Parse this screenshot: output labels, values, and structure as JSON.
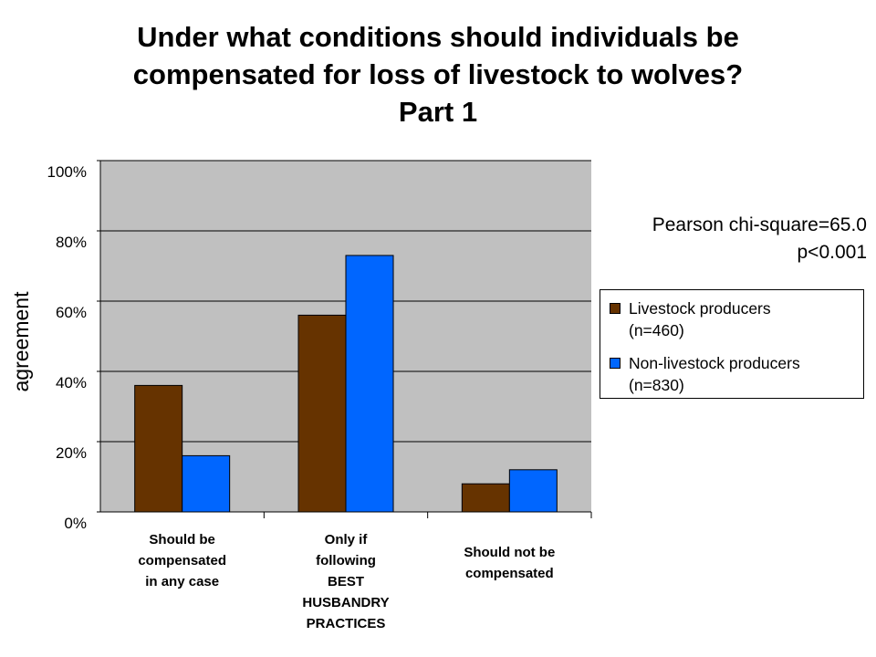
{
  "chart_data": {
    "type": "bar",
    "title_lines": [
      "Under what conditions should individuals be",
      "compensated for loss of livestock to wolves?",
      "Part 1"
    ],
    "ylabel": "agreement",
    "xlabel": "",
    "ylim": [
      0,
      100
    ],
    "yticks": [
      "0%",
      "20%",
      "40%",
      "60%",
      "80%",
      "100%"
    ],
    "ytick_values": [
      0,
      20,
      40,
      60,
      80,
      100
    ],
    "grid": true,
    "categories": [
      [
        "Should be",
        "compensated",
        "in any case"
      ],
      [
        "Only if",
        "following",
        "BEST",
        "HUSBANDRY",
        "PRACTICES"
      ],
      [
        "Should not be",
        "compensated"
      ]
    ],
    "series": [
      {
        "name_lines": [
          "Livestock producers",
          "(n=460)"
        ],
        "values": [
          36,
          56,
          8
        ],
        "color": "#663300"
      },
      {
        "name_lines": [
          "Non-livestock producers",
          "(n=830)"
        ],
        "values": [
          16,
          73,
          12
        ],
        "color": "#0066ff"
      }
    ],
    "plot_background": "#c0c0c0",
    "legend_position": "right",
    "annotations": [
      "Pearson chi-square=65.0",
      "p<0.001"
    ]
  }
}
